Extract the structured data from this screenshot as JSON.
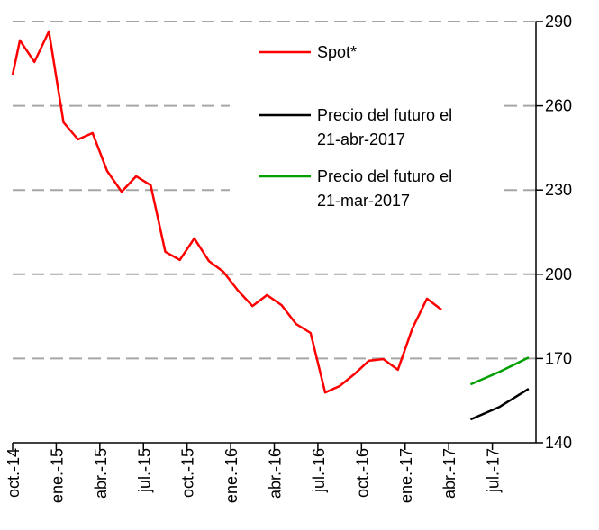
{
  "chart_data": {
    "type": "line",
    "series": [
      {
        "name": "Spot*",
        "color": "#ff0000",
        "x": [
          0,
          0.5,
          1.5,
          2.5,
          3.5,
          4.5,
          5.5,
          6.5,
          7.5,
          8.5,
          9.5,
          10.5,
          11.5,
          12.5,
          13.5,
          14.5,
          15.5,
          16.5,
          17.5,
          18.5,
          19.5,
          20.5,
          21.5,
          22.5,
          23.5,
          24.5,
          25.5,
          26.5,
          27.5,
          28.5,
          29.5
        ],
        "values": [
          271.1,
          283.3,
          275.6,
          286.5,
          254.1,
          248.0,
          250.3,
          236.8,
          229.4,
          234.9,
          231.7,
          208.0,
          205.1,
          212.8,
          204.7,
          200.9,
          194.2,
          188.7,
          192.6,
          189.0,
          182.3,
          179.1,
          157.9,
          160.2,
          164.4,
          169.2,
          169.8,
          166.0,
          180.7,
          191.3,
          187.4
        ]
      },
      {
        "name": "Precio del futuro el 21-abr-2017",
        "color": "#000000",
        "x": [
          31.5,
          33.5,
          35.5
        ],
        "values": [
          148.3,
          152.8,
          159.2
        ]
      },
      {
        "name": "Precio del futuro el 21-mar-2017",
        "color": "#00a000",
        "x": [
          31.5,
          33.5,
          35.5
        ],
        "values": [
          160.8,
          165.3,
          170.4
        ]
      }
    ],
    "xlim": [
      0,
      36
    ],
    "xticks": [
      {
        "value": 0,
        "label": "oct.-14"
      },
      {
        "value": 3,
        "label": "ene.-15"
      },
      {
        "value": 6,
        "label": "abr.-15"
      },
      {
        "value": 9,
        "label": "jul.-15"
      },
      {
        "value": 12,
        "label": "oct.-15"
      },
      {
        "value": 15,
        "label": "ene.-16"
      },
      {
        "value": 18,
        "label": "abr.-16"
      },
      {
        "value": 21,
        "label": "jul.-16"
      },
      {
        "value": 24,
        "label": "oct.-16"
      },
      {
        "value": 27,
        "label": "ene.-17"
      },
      {
        "value": 30,
        "label": "abr.-17"
      },
      {
        "value": 33,
        "label": "jul.-17"
      }
    ],
    "ylim": [
      140,
      290
    ],
    "yticks": [
      140,
      170,
      200,
      230,
      260,
      290
    ],
    "grid": true,
    "legend": "top-right"
  }
}
